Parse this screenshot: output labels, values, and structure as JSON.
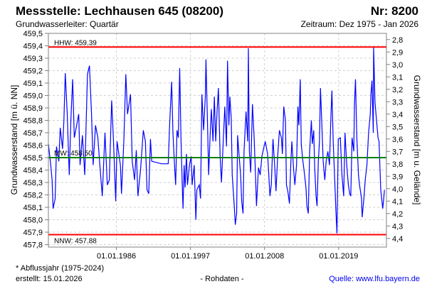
{
  "header": {
    "title": "Messstelle: Lechhausen 645 (08200)",
    "number": "Nr: 8200",
    "aquifer": "Grundwasserleiter: Quartär",
    "period": "Zeitraum: Dez 1975 - Jan 2026"
  },
  "footer": {
    "note": "* Abflussjahr (1975-2024)",
    "created": "erstellt:  15.01.2026",
    "datatype": "- Rohdaten -",
    "source": "Quelle: www.lfu.bayern.de"
  },
  "colors": {
    "series": "#0000ff",
    "extreme": "#ff0000",
    "mean": "#008000",
    "grid": "#d0d0d0"
  },
  "chart_data": {
    "type": "line",
    "title": "Messstelle: Lechhausen 645 (08200)",
    "ylabel": "Grundwasserstand [m ü. NN]",
    "y2label": "Grundwasserstand [m u. Gelände]",
    "xlim": [
      1975.9,
      2026.1
    ],
    "ylim": [
      457.78,
      459.5
    ],
    "ground_level": 462.25,
    "grid": true,
    "yticks": [
      "459,5",
      "459,4",
      "459,3",
      "459,2",
      "459,1",
      "459,0",
      "458,9",
      "458,8",
      "458,7",
      "458,6",
      "458,5",
      "458,4",
      "458,3",
      "458,2",
      "458,1",
      "458,0",
      "457,9",
      "457,8"
    ],
    "ytick_values": [
      459.5,
      459.4,
      459.3,
      459.2,
      459.1,
      459.0,
      458.9,
      458.8,
      458.7,
      458.6,
      458.5,
      458.4,
      458.3,
      458.2,
      458.1,
      458.0,
      457.9,
      457.8
    ],
    "y2ticks": [
      "2,8",
      "2,9",
      "3,0",
      "3,1",
      "3,2",
      "3,3",
      "3,4",
      "3,5",
      "3,6",
      "3,7",
      "3,8",
      "3,9",
      "4,0",
      "4,1",
      "4,2",
      "4,3",
      "4,4"
    ],
    "y2tick_values": [
      2.8,
      2.9,
      3.0,
      3.1,
      3.2,
      3.3,
      3.4,
      3.5,
      3.6,
      3.7,
      3.8,
      3.9,
      4.0,
      4.1,
      4.2,
      4.3,
      4.4
    ],
    "xticks": [
      "01.01.1986",
      "01.01.1997",
      "01.01.2008",
      "01.01.2019"
    ],
    "xtick_values": [
      1986.0,
      1997.0,
      2008.0,
      2019.0
    ],
    "reference_lines": [
      {
        "label": "HHW: 459.39",
        "value": 459.39,
        "kind": "extreme"
      },
      {
        "label": "MW: 458.50",
        "value": 458.5,
        "kind": "mean"
      },
      {
        "label": "NNW: 457.88",
        "value": 457.88,
        "kind": "extreme"
      }
    ],
    "series": [
      {
        "name": "Grundwasserstand",
        "points": [
          [
            1975.9,
            458.61
          ],
          [
            1976.25,
            458.44
          ],
          [
            1976.45,
            458.32
          ],
          [
            1976.6,
            458.09
          ],
          [
            1976.9,
            458.17
          ],
          [
            1977.1,
            458.59
          ],
          [
            1977.45,
            458.47
          ],
          [
            1977.65,
            458.74
          ],
          [
            1978.0,
            458.57
          ],
          [
            1978.2,
            458.8
          ],
          [
            1978.4,
            459.18
          ],
          [
            1978.7,
            458.85
          ],
          [
            1979.0,
            458.36
          ],
          [
            1979.25,
            458.82
          ],
          [
            1979.5,
            459.13
          ],
          [
            1979.75,
            458.66
          ],
          [
            1980.1,
            458.76
          ],
          [
            1980.4,
            458.85
          ],
          [
            1980.6,
            458.44
          ],
          [
            1980.95,
            458.68
          ],
          [
            1981.3,
            458.36
          ],
          [
            1981.7,
            459.17
          ],
          [
            1982.0,
            459.24
          ],
          [
            1982.3,
            458.85
          ],
          [
            1982.55,
            458.44
          ],
          [
            1982.9,
            458.76
          ],
          [
            1983.25,
            458.66
          ],
          [
            1983.5,
            458.47
          ],
          [
            1983.9,
            458.19
          ],
          [
            1984.3,
            458.7
          ],
          [
            1984.65,
            458.28
          ],
          [
            1984.95,
            458.32
          ],
          [
            1985.3,
            458.96
          ],
          [
            1985.55,
            458.66
          ],
          [
            1985.9,
            458.15
          ],
          [
            1986.1,
            458.63
          ],
          [
            1986.6,
            458.44
          ],
          [
            1986.75,
            458.21
          ],
          [
            1987.1,
            458.63
          ],
          [
            1987.4,
            459.17
          ],
          [
            1987.65,
            458.85
          ],
          [
            1988.1,
            459.01
          ],
          [
            1988.35,
            458.47
          ],
          [
            1988.7,
            458.32
          ],
          [
            1988.95,
            458.56
          ],
          [
            1989.2,
            458.19
          ],
          [
            1989.6,
            458.41
          ],
          [
            1990.0,
            458.72
          ],
          [
            1990.3,
            458.63
          ],
          [
            1990.55,
            458.24
          ],
          [
            1990.8,
            458.21
          ],
          [
            1991.05,
            458.65
          ],
          [
            1991.25,
            458.47
          ],
          [
            1992.71,
            458.45
          ],
          [
            1993.7,
            458.45
          ],
          [
            1993.9,
            458.76
          ],
          [
            1994.2,
            459.11
          ],
          [
            1994.4,
            458.7
          ],
          [
            1994.65,
            458.42
          ],
          [
            1994.8,
            458.28
          ],
          [
            1995.0,
            458.72
          ],
          [
            1995.2,
            458.66
          ],
          [
            1995.4,
            459.22
          ],
          [
            1995.6,
            458.63
          ],
          [
            1995.8,
            458.24
          ],
          [
            1995.9,
            458.09
          ],
          [
            1996.05,
            458.44
          ],
          [
            1996.2,
            458.26
          ],
          [
            1996.4,
            458.53
          ],
          [
            1996.55,
            458.28
          ],
          [
            1996.85,
            458.44
          ],
          [
            1997.1,
            458.51
          ],
          [
            1997.25,
            458.28
          ],
          [
            1997.55,
            458.44
          ],
          [
            1997.8,
            458.0
          ],
          [
            1997.95,
            458.24
          ],
          [
            1998.3,
            458.28
          ],
          [
            1998.5,
            458.17
          ],
          [
            1998.7,
            459.01
          ],
          [
            1998.95,
            458.72
          ],
          [
            1999.2,
            458.99
          ],
          [
            1999.3,
            459.29
          ],
          [
            1999.55,
            458.72
          ],
          [
            1999.7,
            458.36
          ],
          [
            1999.9,
            458.66
          ],
          [
            2000.1,
            458.89
          ],
          [
            2000.35,
            458.63
          ],
          [
            2000.55,
            458.99
          ],
          [
            2000.75,
            458.63
          ],
          [
            2000.95,
            458.87
          ],
          [
            2001.15,
            459.06
          ],
          [
            2001.4,
            458.51
          ],
          [
            2001.6,
            458.3
          ],
          [
            2001.85,
            458.61
          ],
          [
            2002.1,
            458.91
          ],
          [
            2002.35,
            458.59
          ],
          [
            2002.5,
            459.28
          ],
          [
            2002.7,
            458.76
          ],
          [
            2002.85,
            458.99
          ],
          [
            2003.05,
            458.82
          ],
          [
            2003.2,
            458.36
          ],
          [
            2003.5,
            458.11
          ],
          [
            2003.65,
            457.96
          ],
          [
            2003.85,
            458.05
          ],
          [
            2004.0,
            458.68
          ],
          [
            2004.2,
            458.53
          ],
          [
            2004.45,
            458.36
          ],
          [
            2004.6,
            458.15
          ],
          [
            2004.8,
            458.05
          ],
          [
            2004.95,
            458.55
          ],
          [
            2005.25,
            458.87
          ],
          [
            2005.5,
            458.63
          ],
          [
            2005.6,
            459.38
          ],
          [
            2005.75,
            458.55
          ],
          [
            2005.95,
            458.38
          ],
          [
            2006.2,
            458.93
          ],
          [
            2006.45,
            458.66
          ],
          [
            2006.65,
            458.36
          ],
          [
            2006.8,
            458.11
          ],
          [
            2007.1,
            458.42
          ],
          [
            2007.35,
            458.36
          ],
          [
            2007.6,
            458.51
          ],
          [
            2007.85,
            458.57
          ],
          [
            2008.1,
            458.63
          ],
          [
            2008.45,
            458.53
          ],
          [
            2008.65,
            458.34
          ],
          [
            2008.8,
            458.19
          ],
          [
            2009.0,
            458.28
          ],
          [
            2009.25,
            458.65
          ],
          [
            2009.5,
            458.44
          ],
          [
            2009.7,
            458.23
          ],
          [
            2009.95,
            458.51
          ],
          [
            2010.2,
            458.72
          ],
          [
            2010.5,
            458.66
          ],
          [
            2010.65,
            458.53
          ],
          [
            2010.85,
            458.91
          ],
          [
            2011.1,
            458.8
          ],
          [
            2011.25,
            458.28
          ],
          [
            2011.45,
            458.23
          ],
          [
            2011.7,
            458.13
          ],
          [
            2011.9,
            458.45
          ],
          [
            2012.05,
            458.63
          ],
          [
            2012.3,
            458.42
          ],
          [
            2012.5,
            458.28
          ],
          [
            2012.75,
            458.44
          ],
          [
            2012.95,
            458.91
          ],
          [
            2013.1,
            458.76
          ],
          [
            2013.3,
            459.13
          ],
          [
            2013.45,
            458.61
          ],
          [
            2013.65,
            458.49
          ],
          [
            2013.9,
            458.38
          ],
          [
            2014.15,
            458.26
          ],
          [
            2014.3,
            458.11
          ],
          [
            2014.5,
            458.05
          ],
          [
            2014.7,
            458.55
          ],
          [
            2014.95,
            458.8
          ],
          [
            2015.1,
            458.61
          ],
          [
            2015.3,
            458.72
          ],
          [
            2015.45,
            458.42
          ],
          [
            2015.65,
            458.19
          ],
          [
            2015.8,
            458.11
          ],
          [
            2015.99,
            458.47
          ],
          [
            2016.15,
            458.63
          ],
          [
            2016.3,
            459.06
          ],
          [
            2016.45,
            458.85
          ],
          [
            2016.7,
            458.47
          ],
          [
            2016.95,
            458.32
          ],
          [
            2017.15,
            458.47
          ],
          [
            2017.4,
            458.55
          ],
          [
            2017.65,
            458.44
          ],
          [
            2017.85,
            458.82
          ],
          [
            2018.0,
            459.04
          ],
          [
            2018.2,
            458.63
          ],
          [
            2018.45,
            458.28
          ],
          [
            2018.6,
            458.07
          ],
          [
            2018.75,
            457.89
          ],
          [
            2018.95,
            458.65
          ],
          [
            2019.25,
            458.66
          ],
          [
            2019.5,
            458.36
          ],
          [
            2019.75,
            458.19
          ],
          [
            2019.95,
            458.7
          ],
          [
            2020.2,
            458.44
          ],
          [
            2020.45,
            458.28
          ],
          [
            2020.65,
            458.21
          ],
          [
            2020.8,
            458.19
          ],
          [
            2021.0,
            458.66
          ],
          [
            2021.25,
            458.55
          ],
          [
            2021.35,
            458.93
          ],
          [
            2021.5,
            459.13
          ],
          [
            2021.7,
            458.66
          ],
          [
            2021.95,
            458.36
          ],
          [
            2022.1,
            458.28
          ],
          [
            2022.4,
            458.17
          ],
          [
            2022.5,
            458.02
          ],
          [
            2022.75,
            458.17
          ],
          [
            2022.95,
            458.32
          ],
          [
            2023.2,
            458.44
          ],
          [
            2023.45,
            458.7
          ],
          [
            2023.7,
            458.85
          ],
          [
            2023.8,
            459.01
          ],
          [
            2023.95,
            459.12
          ],
          [
            2024.15,
            458.7
          ],
          [
            2024.2,
            459.39
          ],
          [
            2024.4,
            458.95
          ],
          [
            2024.55,
            458.85
          ],
          [
            2024.85,
            458.66
          ],
          [
            2025.0,
            458.63
          ],
          [
            2025.25,
            458.24
          ],
          [
            2025.55,
            458.09
          ],
          [
            2025.7,
            458.17
          ],
          [
            2025.8,
            458.24
          ]
        ]
      }
    ]
  }
}
